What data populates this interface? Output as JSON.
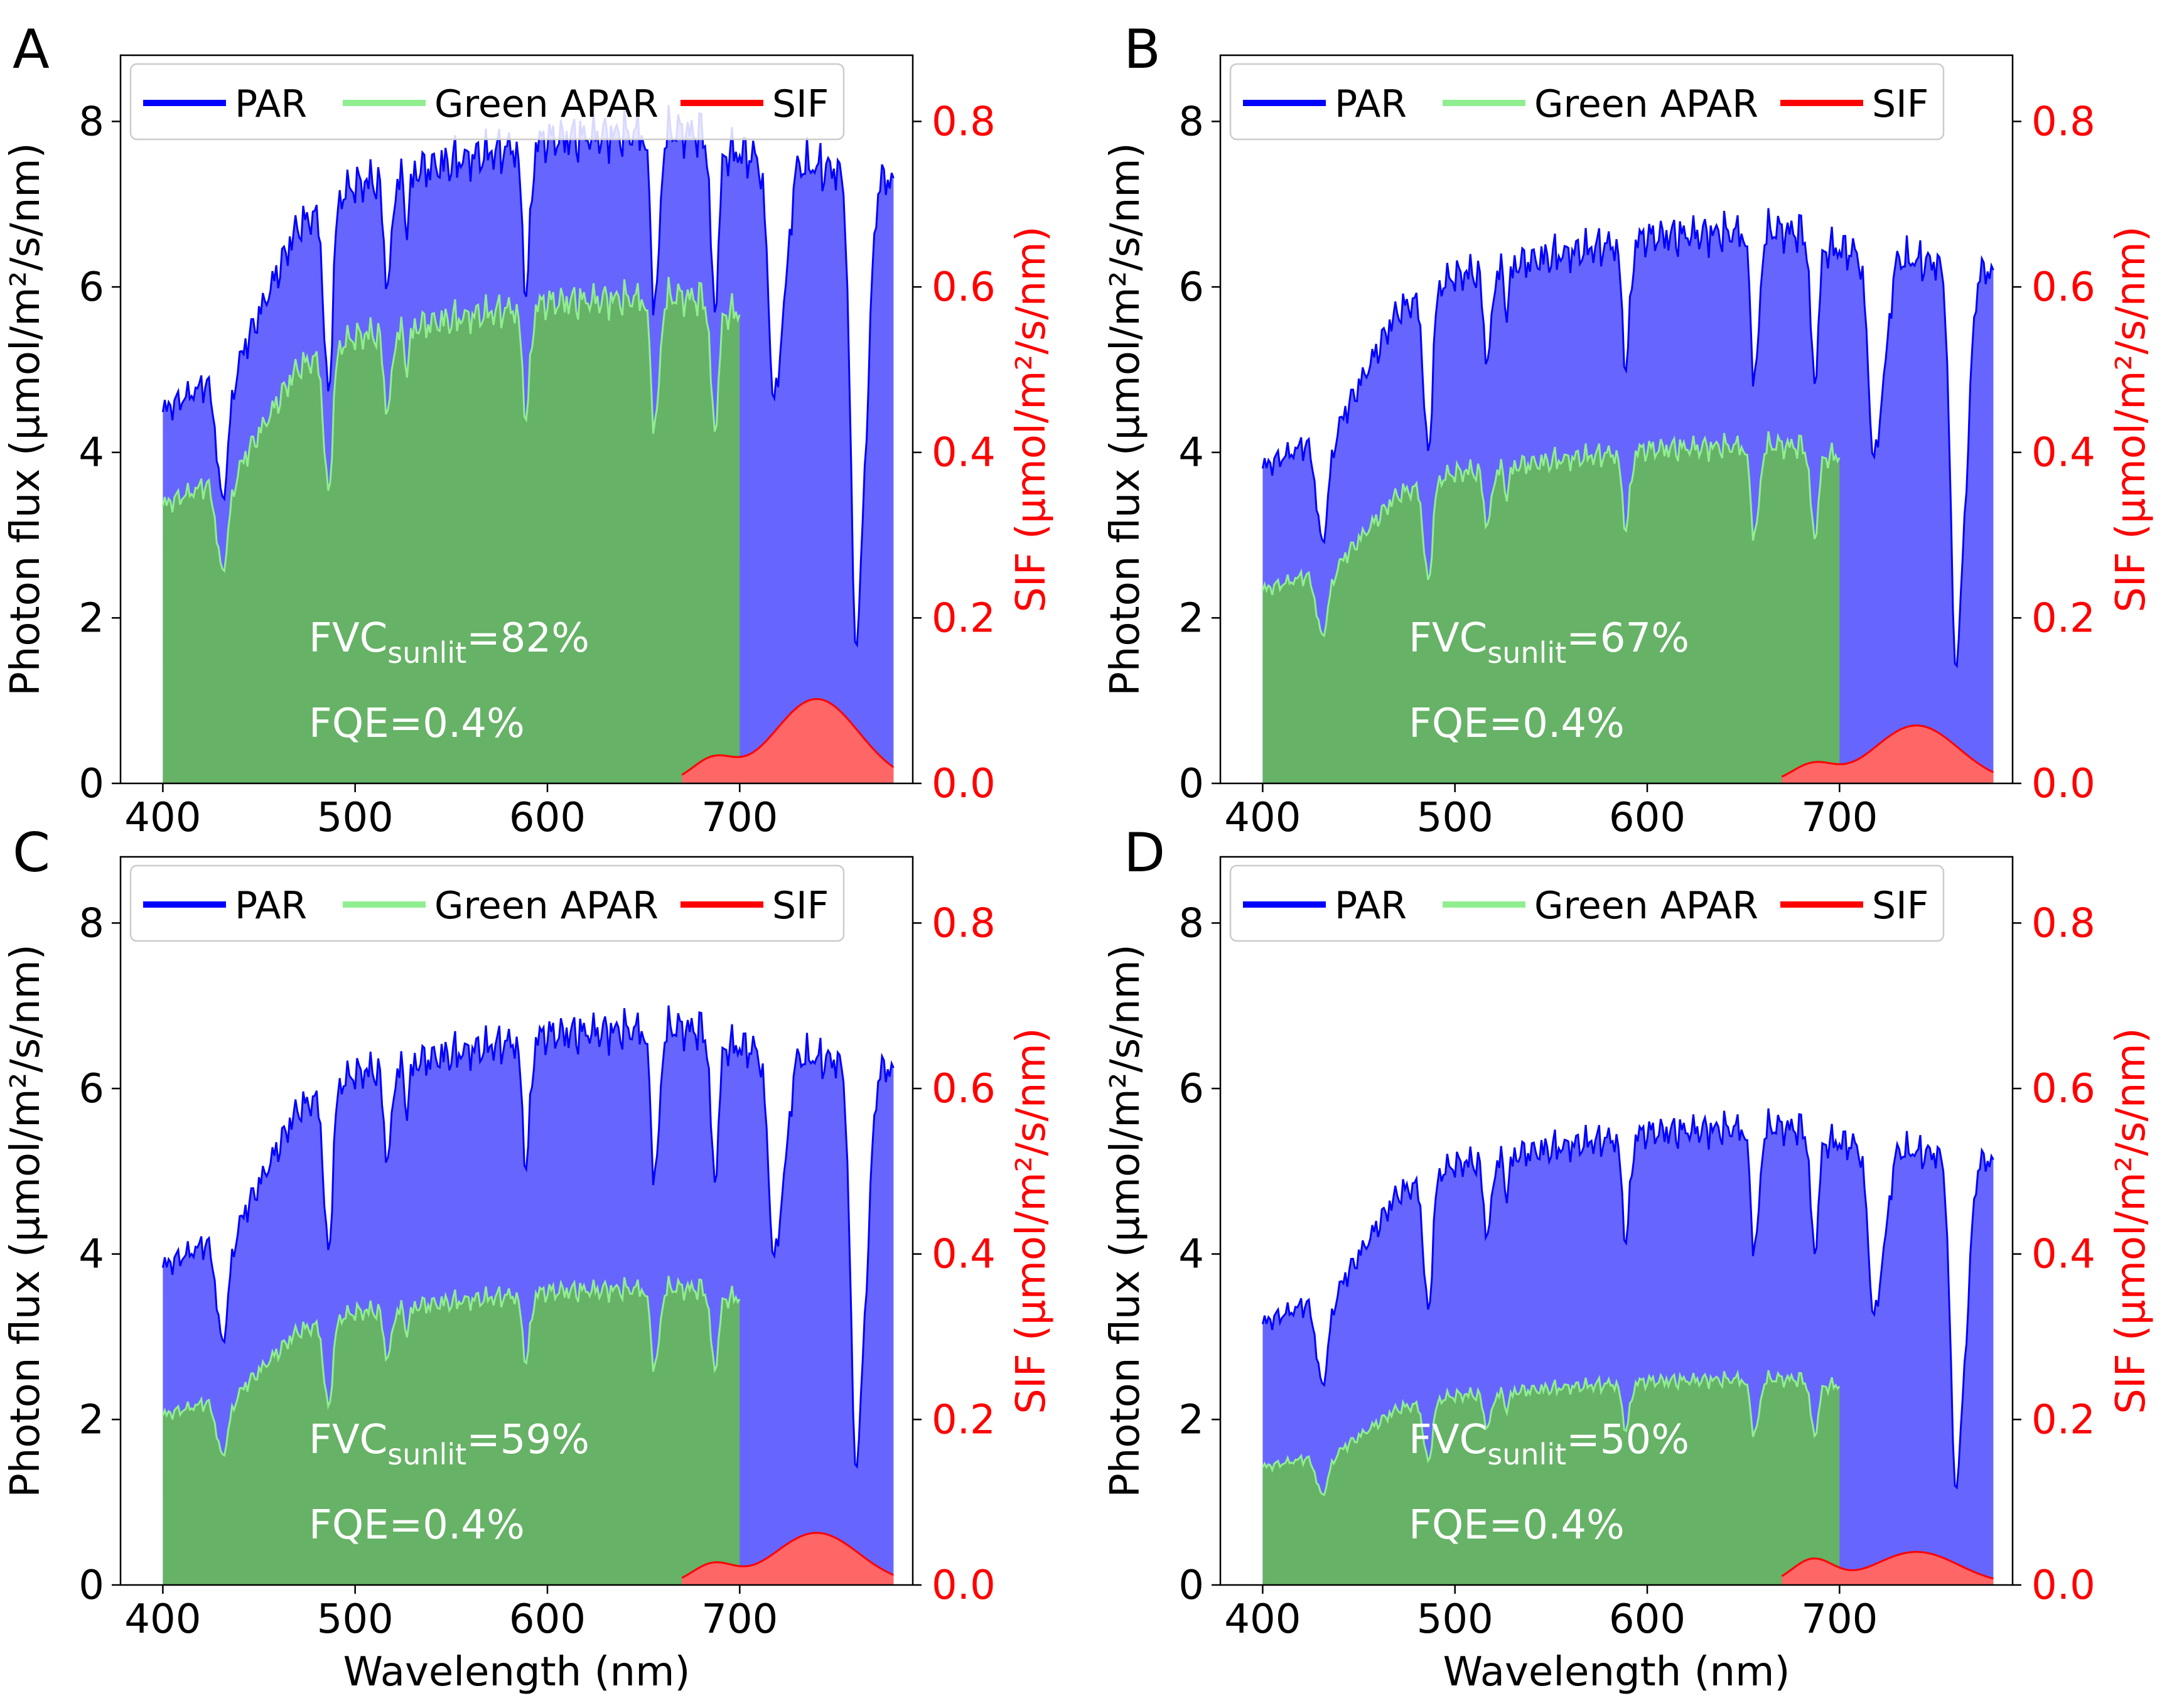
{
  "chart_data": [
    {
      "type": "area",
      "panel_label": "A",
      "fvc_prefix": "FVC",
      "fvc_subscript": "sunlit",
      "fvc_value": "=82%",
      "fqe_text": "FQE=0.4%",
      "xlabel": "",
      "ylabel": "Photon flux (µmol/m²/s/nm)",
      "y2label": "SIF (µmol/m²/s/nm)",
      "xlim": [
        378,
        790
      ],
      "ylim": [
        0,
        8.8
      ],
      "y2lim": [
        0,
        0.88
      ],
      "xticks": [
        "400",
        "500",
        "600",
        "700"
      ],
      "yticks": [
        "0",
        "2",
        "4",
        "6",
        "8"
      ],
      "y2ticks": [
        "0.0",
        "0.2",
        "0.4",
        "0.6",
        "0.8"
      ],
      "legend": [
        "PAR",
        "Green APAR",
        "SIF"
      ],
      "legend_position": "top-center",
      "par_level": 7.9,
      "green_level": 5.9,
      "sif_peak": 0.102,
      "sif_shoulder": 0.028
    },
    {
      "type": "area",
      "panel_label": "B",
      "fvc_prefix": "FVC",
      "fvc_subscript": "sunlit",
      "fvc_value": "=67%",
      "fqe_text": "FQE=0.4%",
      "xlabel": "",
      "ylabel": "Photon flux (µmol/m²/s/nm)",
      "y2label": "SIF (µmol/m²/s/nm)",
      "xlim": [
        378,
        790
      ],
      "ylim": [
        0,
        8.8
      ],
      "y2lim": [
        0,
        0.88
      ],
      "xticks": [
        "400",
        "500",
        "600",
        "700"
      ],
      "yticks": [
        "0",
        "2",
        "4",
        "6",
        "8"
      ],
      "y2ticks": [
        "0.0",
        "0.2",
        "0.4",
        "0.6",
        "0.8"
      ],
      "legend": [
        "PAR",
        "Green APAR",
        "SIF"
      ],
      "legend_position": "top-center",
      "par_level": 6.7,
      "green_level": 4.1,
      "sif_peak": 0.07,
      "sif_shoulder": 0.022
    },
    {
      "type": "area",
      "panel_label": "C",
      "fvc_prefix": "FVC",
      "fvc_subscript": "sunlit",
      "fvc_value": "=59%",
      "fqe_text": "FQE=0.4%",
      "xlabel": "Wavelength (nm)",
      "ylabel": "Photon flux (µmol/m²/s/nm)",
      "y2label": "SIF (µmol/m²/s/nm)",
      "xlim": [
        378,
        790
      ],
      "ylim": [
        0,
        8.8
      ],
      "y2lim": [
        0,
        0.88
      ],
      "xticks": [
        "400",
        "500",
        "600",
        "700"
      ],
      "yticks": [
        "0",
        "2",
        "4",
        "6",
        "8"
      ],
      "y2ticks": [
        "0.0",
        "0.2",
        "0.4",
        "0.6",
        "0.8"
      ],
      "legend": [
        "PAR",
        "Green APAR",
        "SIF"
      ],
      "legend_position": "top-center",
      "par_level": 6.75,
      "green_level": 3.6,
      "sif_peak": 0.063,
      "sif_shoulder": 0.024
    },
    {
      "type": "area",
      "panel_label": "D",
      "fvc_prefix": "FVC",
      "fvc_subscript": "sunlit",
      "fvc_value": "=50%",
      "fqe_text": "FQE=0.4%",
      "xlabel": "Wavelength (nm)",
      "ylabel": "Photon flux (µmol/m²/s/nm)",
      "y2label": "SIF (µmol/m²/s/nm)",
      "xlim": [
        378,
        790
      ],
      "ylim": [
        0,
        8.8
      ],
      "y2lim": [
        0,
        0.88
      ],
      "xticks": [
        "400",
        "500",
        "600",
        "700"
      ],
      "yticks": [
        "0",
        "2",
        "4",
        "6",
        "8"
      ],
      "y2ticks": [
        "0.0",
        "0.2",
        "0.4",
        "0.6",
        "0.8"
      ],
      "legend": [
        "PAR",
        "Green APAR",
        "SIF"
      ],
      "legend_position": "top-center",
      "par_level": 5.55,
      "green_level": 2.5,
      "sif_peak": 0.04,
      "sif_shoulder": 0.03
    }
  ],
  "colors": {
    "par": "#0000ff",
    "par_fill": "#6666ff",
    "green_line": "#90ee90",
    "green_fill": "#66b266",
    "sif": "#ff0000",
    "sif_fill": "#ff6666",
    "annotation": "#ffffff"
  }
}
